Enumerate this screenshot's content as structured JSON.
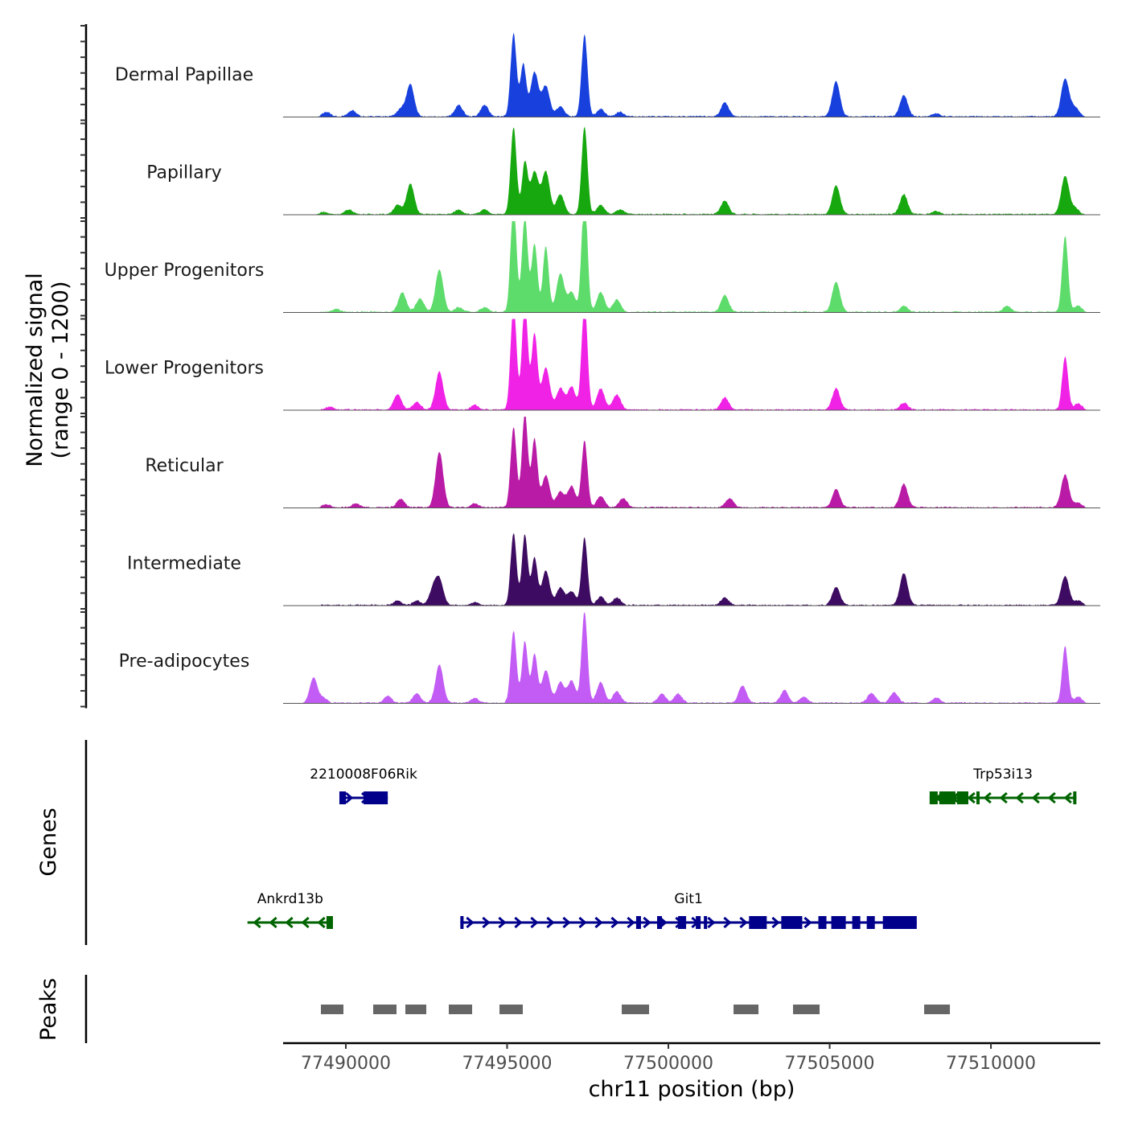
{
  "chart_data": {
    "type": "area",
    "title": "",
    "region": {
      "chrom": "chr11",
      "start": 77488055,
      "end": 77513390
    },
    "xlabel": "chr11 position (bp)",
    "x_ticks": [
      77490000,
      77495000,
      77500000,
      77505000,
      77510000
    ],
    "x_tick_labels": [
      "77490000",
      "77495000",
      "77500000",
      "77505000",
      "77510000"
    ],
    "ylabel": "Normalized signal",
    "ylabel_range": "(range 0 - 1200)",
    "ylim": [
      0,
      1200
    ],
    "signal_tracks": [
      {
        "name": "Dermal Papillae",
        "color": "#1740DD",
        "peaks": [
          [
            77489400,
            60
          ],
          [
            77490200,
            80
          ],
          [
            77491700,
            100
          ],
          [
            77492000,
            420
          ],
          [
            77493500,
            150
          ],
          [
            77494300,
            150
          ],
          [
            77495200,
            1090
          ],
          [
            77495500,
            690
          ],
          [
            77495850,
            580
          ],
          [
            77496200,
            400
          ],
          [
            77496650,
            130
          ],
          [
            77497400,
            1080
          ],
          [
            77497900,
            100
          ],
          [
            77498500,
            60
          ],
          [
            77501750,
            180
          ],
          [
            77505200,
            460
          ],
          [
            77507300,
            280
          ],
          [
            77508300,
            40
          ],
          [
            77512300,
            500
          ],
          [
            77512600,
            120
          ],
          [
            77514000,
            30
          ]
        ]
      },
      {
        "name": "Papillary",
        "color": "#16A80E",
        "peaks": [
          [
            77489300,
            30
          ],
          [
            77490100,
            60
          ],
          [
            77491600,
            120
          ],
          [
            77492000,
            400
          ],
          [
            77493500,
            60
          ],
          [
            77494300,
            60
          ],
          [
            77495200,
            1150
          ],
          [
            77495550,
            680
          ],
          [
            77495850,
            560
          ],
          [
            77496200,
            560
          ],
          [
            77496650,
            260
          ],
          [
            77497400,
            1160
          ],
          [
            77497900,
            120
          ],
          [
            77498500,
            60
          ],
          [
            77501750,
            180
          ],
          [
            77505200,
            380
          ],
          [
            77507300,
            260
          ],
          [
            77508300,
            40
          ],
          [
            77512300,
            500
          ],
          [
            77512600,
            80
          ],
          [
            77515000,
            40
          ]
        ]
      },
      {
        "name": "Upper Progenitors",
        "color": "#5DDB6B",
        "peaks": [
          [
            77489700,
            40
          ],
          [
            77491750,
            260
          ],
          [
            77492300,
            180
          ],
          [
            77492900,
            560
          ],
          [
            77493500,
            60
          ],
          [
            77494300,
            60
          ],
          [
            77495200,
            1450
          ],
          [
            77495550,
            1250
          ],
          [
            77495850,
            900
          ],
          [
            77496200,
            860
          ],
          [
            77496650,
            500
          ],
          [
            77497000,
            260
          ],
          [
            77497400,
            1540
          ],
          [
            77497900,
            260
          ],
          [
            77498400,
            160
          ],
          [
            77501750,
            220
          ],
          [
            77505200,
            400
          ],
          [
            77507300,
            80
          ],
          [
            77510500,
            80
          ],
          [
            77512300,
            1000
          ],
          [
            77512700,
            80
          ],
          [
            77515000,
            30
          ]
        ]
      },
      {
        "name": "Lower Progenitors",
        "color": "#F022E6",
        "peaks": [
          [
            77489500,
            40
          ],
          [
            77491600,
            200
          ],
          [
            77492200,
            100
          ],
          [
            77492900,
            500
          ],
          [
            77494000,
            60
          ],
          [
            77495200,
            1400
          ],
          [
            77495550,
            1420
          ],
          [
            77495850,
            1000
          ],
          [
            77496200,
            560
          ],
          [
            77496650,
            280
          ],
          [
            77497000,
            300
          ],
          [
            77497400,
            1420
          ],
          [
            77497900,
            280
          ],
          [
            77498400,
            200
          ],
          [
            77501750,
            160
          ],
          [
            77505200,
            280
          ],
          [
            77507300,
            90
          ],
          [
            77512300,
            700
          ],
          [
            77512700,
            80
          ],
          [
            77515000,
            30
          ]
        ]
      },
      {
        "name": "Reticular",
        "color": "#B91BA6",
        "peaks": [
          [
            77489400,
            40
          ],
          [
            77490300,
            50
          ],
          [
            77491700,
            110
          ],
          [
            77492900,
            250
          ],
          [
            77492900,
            480
          ],
          [
            77494000,
            50
          ],
          [
            77495200,
            1060
          ],
          [
            77495550,
            1250
          ],
          [
            77495850,
            900
          ],
          [
            77496200,
            420
          ],
          [
            77496650,
            210
          ],
          [
            77497000,
            280
          ],
          [
            77497400,
            880
          ],
          [
            77497900,
            150
          ],
          [
            77498600,
            120
          ],
          [
            77501900,
            120
          ],
          [
            77505200,
            240
          ],
          [
            77507300,
            310
          ],
          [
            77512300,
            430
          ],
          [
            77512700,
            60
          ]
        ]
      },
      {
        "name": "Intermediate",
        "color": "#3D0B61",
        "peaks": [
          [
            77491600,
            60
          ],
          [
            77492200,
            60
          ],
          [
            77492700,
            200
          ],
          [
            77492900,
            320
          ],
          [
            77494000,
            40
          ],
          [
            77495200,
            950
          ],
          [
            77495550,
            930
          ],
          [
            77495850,
            620
          ],
          [
            77496200,
            450
          ],
          [
            77496650,
            230
          ],
          [
            77497000,
            180
          ],
          [
            77497400,
            890
          ],
          [
            77497900,
            110
          ],
          [
            77498400,
            100
          ],
          [
            77501750,
            100
          ],
          [
            77505200,
            240
          ],
          [
            77507300,
            420
          ],
          [
            77512300,
            380
          ],
          [
            77512700,
            60
          ],
          [
            77514500,
            60
          ]
        ]
      },
      {
        "name": "Pre-adipocytes",
        "color": "#C25CF5",
        "peaks": [
          [
            77489000,
            340
          ],
          [
            77489300,
            60
          ],
          [
            77491300,
            90
          ],
          [
            77492200,
            120
          ],
          [
            77492900,
            500
          ],
          [
            77494000,
            60
          ],
          [
            77495200,
            950
          ],
          [
            77495550,
            810
          ],
          [
            77495850,
            640
          ],
          [
            77496200,
            430
          ],
          [
            77496650,
            270
          ],
          [
            77497000,
            290
          ],
          [
            77497400,
            1200
          ],
          [
            77497900,
            270
          ],
          [
            77498400,
            150
          ],
          [
            77499800,
            120
          ],
          [
            77500300,
            120
          ],
          [
            77502300,
            230
          ],
          [
            77503600,
            170
          ],
          [
            77504200,
            80
          ],
          [
            77506300,
            130
          ],
          [
            77507000,
            140
          ],
          [
            77508300,
            70
          ],
          [
            77512300,
            740
          ],
          [
            77512700,
            80
          ],
          [
            77514300,
            90
          ]
        ]
      }
    ],
    "genes": [
      {
        "name": "2210008F06Rik",
        "strand": "+",
        "start": 77489800,
        "end": 77491300,
        "row": 1,
        "color": "#00008B",
        "exons": [
          [
            77489800,
            77490000
          ],
          [
            77490550,
            77491300
          ]
        ]
      },
      {
        "name": "Trp53i13",
        "strand": "-",
        "start": 77508100,
        "end": 77512650,
        "row": 1,
        "color": "#006400",
        "exons": [
          [
            77508100,
            77508350
          ],
          [
            77508400,
            77508900
          ],
          [
            77508950,
            77509300
          ],
          [
            77509550,
            77509650
          ],
          [
            77512550,
            77512650
          ]
        ]
      },
      {
        "name": "Ankrd13b",
        "strand": "-",
        "start": 77486950,
        "end": 77489600,
        "row": 2,
        "color": "#006400",
        "exons": [
          [
            77489400,
            77489600
          ]
        ]
      },
      {
        "name": "Git1",
        "strand": "+",
        "start": 77493550,
        "end": 77507700,
        "row": 2,
        "color": "#00008B",
        "exons": [
          [
            77493550,
            77493650
          ],
          [
            77499000,
            77499150
          ],
          [
            77499650,
            77499800
          ],
          [
            77500300,
            77500550
          ],
          [
            77500850,
            77501000
          ],
          [
            77501100,
            77501200
          ],
          [
            77502500,
            77503050
          ],
          [
            77503500,
            77504150
          ],
          [
            77504650,
            77504900
          ],
          [
            77505050,
            77505500
          ],
          [
            77505700,
            77505950
          ],
          [
            77506150,
            77506400
          ],
          [
            77506650,
            77507700
          ]
        ]
      }
    ],
    "genes_label": "Genes",
    "peaks_label": "Peaks",
    "peak_regions": [
      [
        77489227,
        77489925
      ],
      [
        77490848,
        77491571
      ],
      [
        77491845,
        77492494
      ],
      [
        77493192,
        77493915
      ],
      [
        77494763,
        77495486
      ],
      [
        77498554,
        77499401
      ],
      [
        77502020,
        77502793
      ],
      [
        77503865,
        77504688
      ],
      [
        77507930,
        77508728
      ]
    ],
    "peak_color": "#666666"
  }
}
